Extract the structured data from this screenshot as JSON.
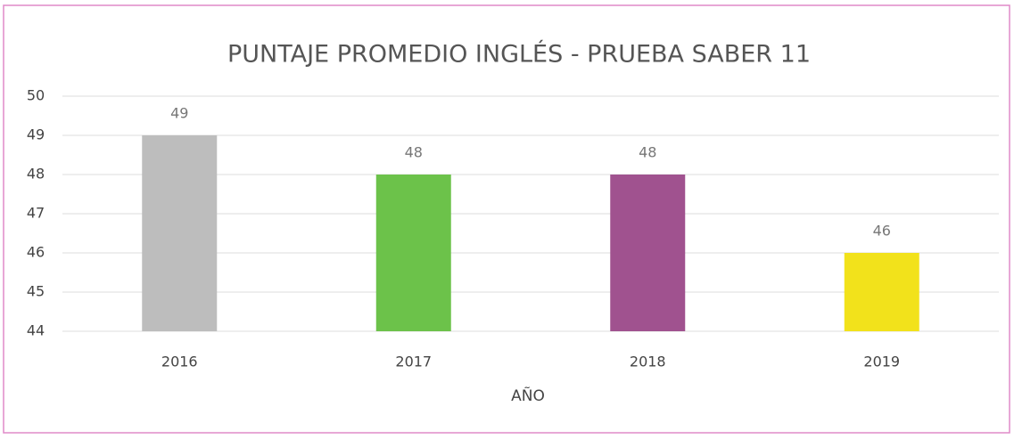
{
  "chart_data": {
    "type": "bar",
    "title": "PUNTAJE PROMEDIO INGLÉS - PRUEBA SABER 11",
    "x_label": "AÑO",
    "categories": [
      "2016",
      "2017",
      "2018",
      "2019"
    ],
    "values": [
      49,
      48,
      48,
      46
    ],
    "colors": [
      "#bdbdbd",
      "#6cc24a",
      "#a0528f",
      "#f2e21b"
    ],
    "ylim": [
      44,
      50
    ],
    "yticks": [
      44,
      45,
      46,
      47,
      48,
      49,
      50
    ],
    "grid": true
  }
}
